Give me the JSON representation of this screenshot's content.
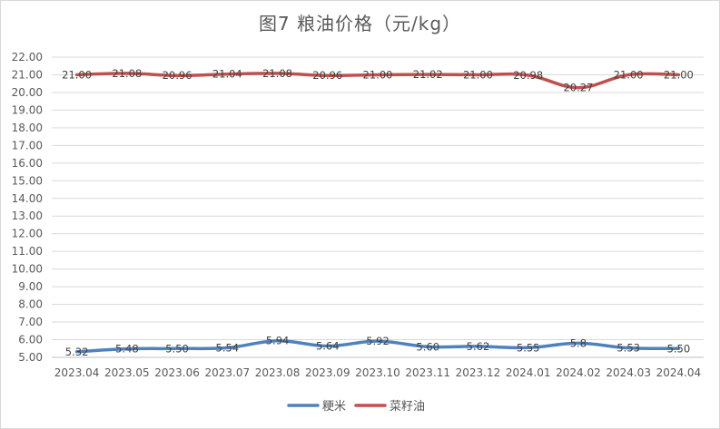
{
  "chart_data": {
    "type": "line",
    "title": "图7  粮油价格（元/kg）",
    "xlabel": "",
    "ylabel": "",
    "categories": [
      "2023.04",
      "2023.05",
      "2023.06",
      "2023.07",
      "2023.08",
      "2023.09",
      "2023.10",
      "2023.11",
      "2023.12",
      "2024.01",
      "2024.02",
      "2024.03",
      "2024.04"
    ],
    "ylim": [
      5.0,
      22.0
    ],
    "ytick_step": 1.0,
    "ytick_labels": [
      "5.00",
      "6.00",
      "7.00",
      "8.00",
      "9.00",
      "10.00",
      "11.00",
      "12.00",
      "13.00",
      "14.00",
      "15.00",
      "16.00",
      "17.00",
      "18.00",
      "19.00",
      "20.00",
      "21.00",
      "22.00"
    ],
    "grid": true,
    "legend_position": "bottom",
    "series": [
      {
        "name": "粳米",
        "color": "#4f81bd",
        "values": [
          5.32,
          5.48,
          5.5,
          5.54,
          5.94,
          5.64,
          5.92,
          5.6,
          5.62,
          5.55,
          5.8,
          5.53,
          5.5
        ],
        "labels": [
          "5.32",
          "5.48",
          "5.50",
          "5.54",
          "5.94",
          "5.64",
          "5.92",
          "5.60",
          "5.62",
          "5.55",
          "5.8",
          "5.53",
          "5.50"
        ]
      },
      {
        "name": "菜籽油",
        "color": "#c0504d",
        "values": [
          21.0,
          21.08,
          20.96,
          21.04,
          21.08,
          20.96,
          21.0,
          21.02,
          21.0,
          20.98,
          20.27,
          21.0,
          21.0
        ],
        "labels": [
          "21.00",
          "21.08",
          "20.96",
          "21.04",
          "21.08",
          "20.96",
          "21.00",
          "21.02",
          "21.00",
          "20.98",
          "20.27",
          "21.00",
          "21.00"
        ]
      }
    ]
  }
}
